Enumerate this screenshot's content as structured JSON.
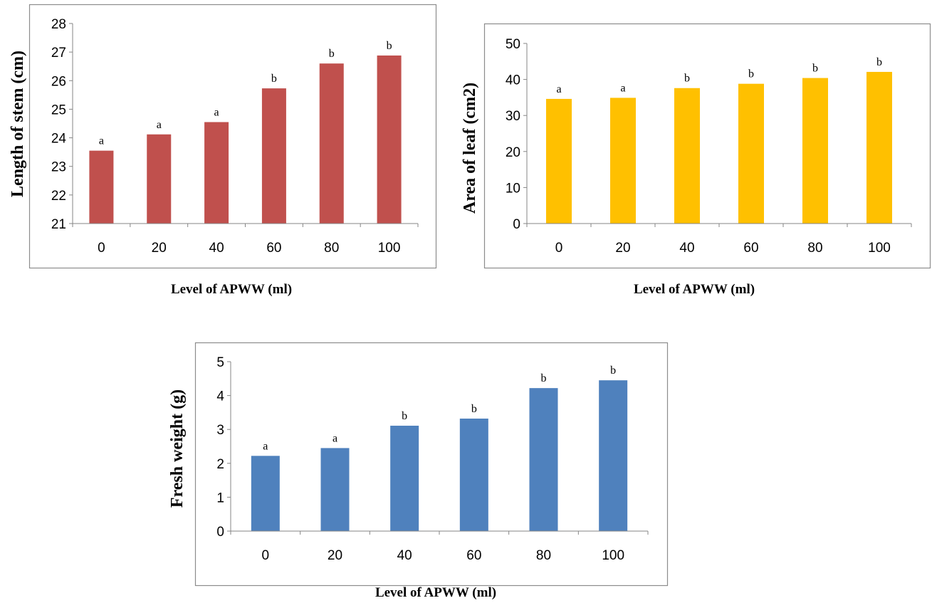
{
  "chart_data": [
    {
      "type": "bar",
      "categories": [
        "0",
        "20",
        "40",
        "60",
        "80",
        "100"
      ],
      "values": [
        23.55,
        24.12,
        24.55,
        25.73,
        26.6,
        26.88
      ],
      "sig_letters": [
        "a",
        "a",
        "a",
        "b",
        "b",
        "b"
      ],
      "ylabel": "Length of stem (cm)",
      "xlabel": "Level of APWW (ml)",
      "ylim": [
        21,
        28
      ],
      "yticks": [
        "21",
        "22",
        "23",
        "24",
        "25",
        "26",
        "27",
        "28"
      ],
      "color": "#c0504d",
      "grid": false,
      "legend": "none"
    },
    {
      "type": "bar",
      "categories": [
        "0",
        "20",
        "40",
        "60",
        "80",
        "100"
      ],
      "values": [
        34.6,
        34.9,
        37.6,
        38.8,
        40.4,
        42.1
      ],
      "sig_letters": [
        "a",
        "a",
        "b",
        "b",
        "b",
        "b"
      ],
      "ylabel": "Area of leaf (cm2)",
      "xlabel": "Level of APWW (ml)",
      "ylim": [
        0,
        50
      ],
      "yticks": [
        "0",
        "10",
        "20",
        "30",
        "40",
        "50"
      ],
      "color": "#ffc000",
      "grid": false,
      "legend": "none"
    },
    {
      "type": "bar",
      "categories": [
        "0",
        "20",
        "40",
        "60",
        "80",
        "100"
      ],
      "values": [
        2.22,
        2.45,
        3.11,
        3.32,
        4.22,
        4.45
      ],
      "sig_letters": [
        "a",
        "a",
        "b",
        "b",
        "b",
        "b"
      ],
      "ylabel": "Fresh weight (g)",
      "xlabel": "Level of APWW (ml)",
      "ylim": [
        0,
        5
      ],
      "yticks": [
        "0",
        "1",
        "2",
        "3",
        "4",
        "5"
      ],
      "color": "#4f81bd",
      "grid": false,
      "legend": "none"
    }
  ]
}
